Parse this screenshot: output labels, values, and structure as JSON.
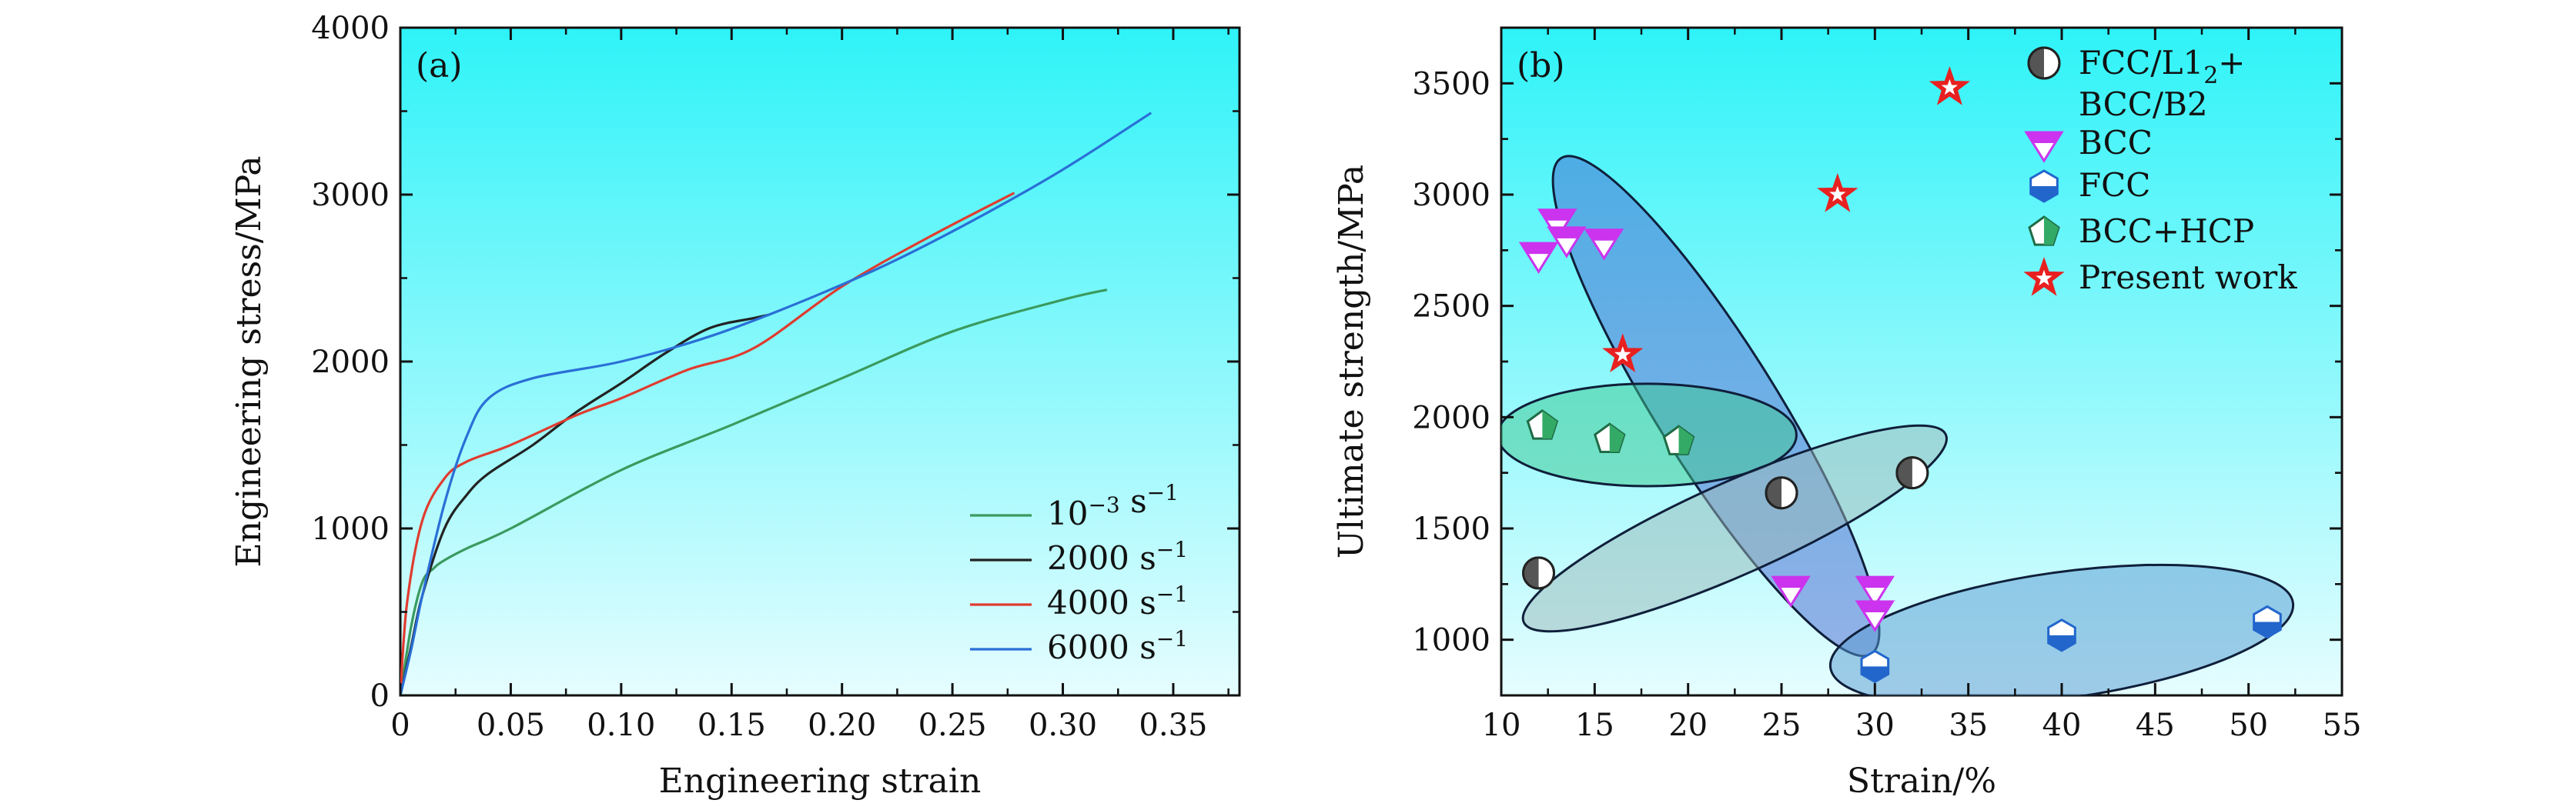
{
  "chart_data": [
    {
      "type": "line",
      "panel_label": "(a)",
      "xlabel": "Engineering strain",
      "ylabel": "Engineering stress/MPa",
      "xlim": [
        0,
        0.38
      ],
      "ylim": [
        0,
        4000
      ],
      "xticks": [
        "0",
        "0.05",
        "0.10",
        "0.15",
        "0.20",
        "0.25",
        "0.30",
        "0.35"
      ],
      "yticks": [
        "0",
        "1000",
        "2000",
        "3000",
        "4000"
      ],
      "legend_position": "bottom-right",
      "series": [
        {
          "name": "10−3 s−1",
          "legend_base": "10",
          "legend_exp": "−3",
          "legend_unit": " s",
          "legend_unit_exp": "−1",
          "color": "#3a9a5e",
          "x": [
            0,
            0.005,
            0.01,
            0.015,
            0.02,
            0.03,
            0.05,
            0.1,
            0.15,
            0.2,
            0.25,
            0.3,
            0.32
          ],
          "y": [
            0,
            420,
            680,
            760,
            810,
            880,
            1000,
            1350,
            1620,
            1900,
            2180,
            2370,
            2430
          ]
        },
        {
          "name": "2000 s−1",
          "legend_base": "2000",
          "legend_exp": "",
          "legend_unit": " s",
          "legend_unit_exp": "−1",
          "color": "#222222",
          "x": [
            0,
            0.005,
            0.01,
            0.02,
            0.03,
            0.04,
            0.06,
            0.08,
            0.1,
            0.12,
            0.14,
            0.16,
            0.167
          ],
          "y": [
            0,
            300,
            600,
            1000,
            1200,
            1330,
            1500,
            1700,
            1870,
            2050,
            2200,
            2260,
            2280
          ]
        },
        {
          "name": "4000 s−1",
          "legend_base": "4000",
          "legend_exp": "",
          "legend_unit": " s",
          "legend_unit_exp": "−1",
          "color": "#e03b2f",
          "x": [
            0,
            0.003,
            0.01,
            0.02,
            0.03,
            0.05,
            0.08,
            0.1,
            0.13,
            0.16,
            0.2,
            0.24,
            0.278
          ],
          "y": [
            0,
            550,
            1050,
            1300,
            1400,
            1500,
            1680,
            1780,
            1950,
            2080,
            2450,
            2750,
            3010
          ]
        },
        {
          "name": "6000 s−1",
          "legend_base": "6000",
          "legend_exp": "",
          "legend_unit": " s",
          "legend_unit_exp": "−1",
          "color": "#2a6fd6",
          "x": [
            0,
            0.005,
            0.01,
            0.02,
            0.03,
            0.04,
            0.06,
            0.1,
            0.14,
            0.18,
            0.22,
            0.26,
            0.3,
            0.34
          ],
          "y": [
            0,
            280,
            600,
            1150,
            1550,
            1780,
            1900,
            2000,
            2150,
            2350,
            2580,
            2850,
            3150,
            3490
          ]
        }
      ]
    },
    {
      "type": "scatter",
      "panel_label": "(b)",
      "xlabel": "Strain/%",
      "ylabel": "Ultimate strength/MPa",
      "xlim": [
        10,
        55
      ],
      "ylim": [
        750,
        3750
      ],
      "xticks": [
        "10",
        "15",
        "20",
        "25",
        "30",
        "35",
        "40",
        "45",
        "50",
        "55"
      ],
      "yticks": [
        "1000",
        "1500",
        "2000",
        "2500",
        "3000",
        "3500"
      ],
      "legend_position": "top-right",
      "series": [
        {
          "name": "FCC/L12+ BCC/B2",
          "legend_lines": [
            "FCC/L1",
            "2",
            "+",
            "BCC/B2"
          ],
          "marker": "half-circle",
          "color": "#555555",
          "x": [
            12,
            25,
            32
          ],
          "y": [
            1300,
            1660,
            1750
          ]
        },
        {
          "name": "BCC",
          "legend_lines": [
            "BCC"
          ],
          "marker": "down-triangle",
          "color": "#cc33ee",
          "x": [
            12,
            13,
            13.5,
            15.5,
            25.5,
            30,
            30
          ],
          "y": [
            2730,
            2880,
            2800,
            2790,
            1230,
            1230,
            1120
          ]
        },
        {
          "name": "FCC",
          "legend_lines": [
            "FCC"
          ],
          "marker": "half-hexagon",
          "color": "#2266cc",
          "x": [
            30,
            40,
            51
          ],
          "y": [
            880,
            1020,
            1080
          ]
        },
        {
          "name": "BCC+HCP",
          "legend_lines": [
            "BCC+HCP"
          ],
          "marker": "half-pentagon",
          "color": "#33aa66",
          "x": [
            12.2,
            15.8,
            19.5
          ],
          "y": [
            1960,
            1900,
            1890
          ]
        },
        {
          "name": "Present work",
          "legend_lines": [
            "Present work"
          ],
          "marker": "half-star",
          "color": "#e82020",
          "x": [
            16.5,
            28,
            34
          ],
          "y": [
            2280,
            3000,
            3480
          ]
        }
      ],
      "regions": [
        {
          "name": "bcc-region",
          "cx": 21.5,
          "cy": 2050,
          "rx": 13.5,
          "ry": 220,
          "angle_data_slope": -1,
          "color": "#4a66d0"
        },
        {
          "name": "bcc-hcp-region",
          "cx": 17.8,
          "cy": 1920,
          "rx": 8,
          "ry": 230,
          "color": "#3dc890"
        },
        {
          "name": "fcc-l12-region",
          "cx": 22.5,
          "cy": 1500,
          "rx": 12,
          "ry": 180,
          "color": "#9ab8b8"
        },
        {
          "name": "fcc-region",
          "cx": 40,
          "cy": 1020,
          "rx": 12.5,
          "ry": 270,
          "color": "#5599d0"
        }
      ]
    }
  ]
}
